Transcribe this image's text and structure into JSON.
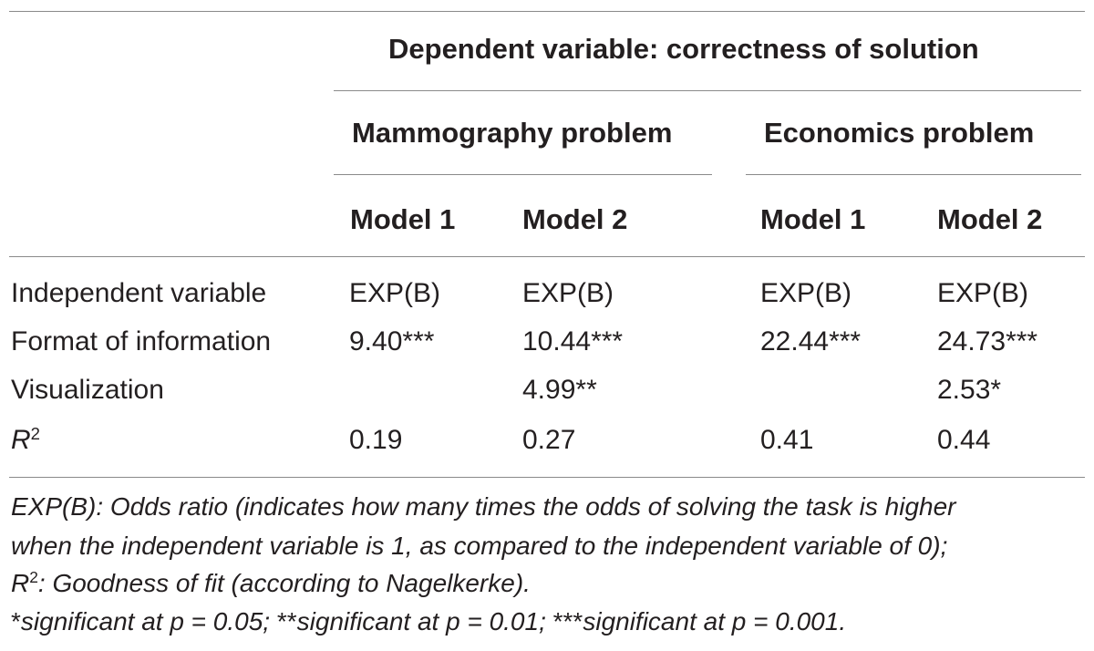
{
  "header": {
    "dependent_variable": "Dependent variable: correctness of solution",
    "groups": [
      "Mammography problem",
      "Economics problem"
    ],
    "models": [
      "Model 1",
      "Model 2",
      "Model 1",
      "Model 2"
    ]
  },
  "rows": [
    {
      "label": "Independent variable",
      "cells": [
        "EXP(B)",
        "EXP(B)",
        "EXP(B)",
        "EXP(B)"
      ]
    },
    {
      "label": "Format of information",
      "cells": [
        "9.40***",
        "10.44***",
        "22.44***",
        "24.73***"
      ]
    },
    {
      "label": "Visualization",
      "cells": [
        "",
        "4.99**",
        "",
        "2.53*"
      ]
    },
    {
      "label_base": "R",
      "label_sup": "2",
      "cells": [
        "0.19",
        "0.27",
        "0.41",
        "0.44"
      ]
    }
  ],
  "footnotes": {
    "line1": "EXP(B): Odds ratio (indicates how many times the odds of solving the task is higher",
    "line2": "when the independent variable is 1, as compared to the independent variable of 0);",
    "line3_base": "R",
    "line3_sup": "2",
    "line3_rest": ": Goodness of fit (according to Nagelkerke).",
    "line4_parts": [
      {
        "text": "*",
        "italic": false
      },
      {
        "text": "significant at p = 0.05; ",
        "italic": true
      },
      {
        "text": "**",
        "italic": false
      },
      {
        "text": "significant at p = 0.01; ",
        "italic": true
      },
      {
        "text": "***",
        "italic": false
      },
      {
        "text": "significant at p = 0.001.",
        "italic": true
      }
    ]
  }
}
